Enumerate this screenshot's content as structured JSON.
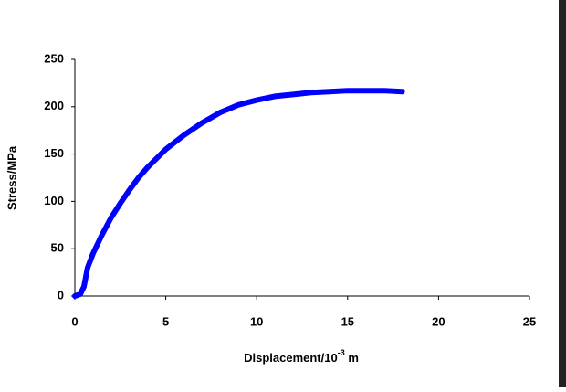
{
  "chart_data": {
    "type": "line",
    "x_label": {
      "text": "Displacement/10",
      "superscript": "-3",
      "suffix": " m"
    },
    "y_label": "Stress/MPa",
    "x": [
      0,
      0.3,
      0.5,
      0.7,
      1,
      1.5,
      2,
      2.5,
      3,
      3.5,
      4,
      5,
      6,
      7,
      8,
      9,
      10,
      11,
      12,
      13,
      14,
      15,
      16,
      17,
      18
    ],
    "series": [
      {
        "color": "#0000ff",
        "values": [
          0,
          2,
          10,
          30,
          45,
          65,
          83,
          98,
          112,
          125,
          136,
          155,
          170,
          183,
          194,
          202,
          207,
          211,
          213,
          215,
          216,
          217,
          217,
          217,
          216
        ]
      }
    ],
    "xlim": [
      0,
      25
    ],
    "xticks": [
      0,
      5,
      10,
      15,
      20,
      25
    ],
    "ylim": [
      0,
      250
    ],
    "yticks": [
      0,
      50,
      100,
      150,
      200,
      250
    ],
    "grid": false
  }
}
